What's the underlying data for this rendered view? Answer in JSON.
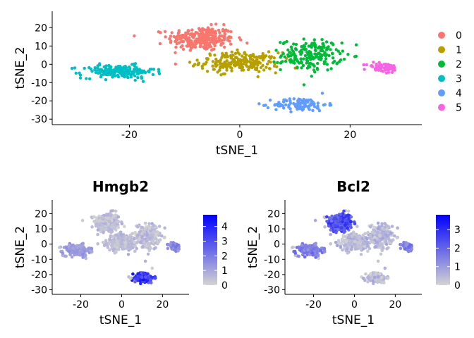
{
  "chart_data": [
    {
      "type": "scatter",
      "xlabel": "tSNE_1",
      "ylabel": "tSNE_2",
      "xlim": [
        -34,
        33
      ],
      "ylim": [
        -33,
        29
      ],
      "xticks": [
        -20,
        0,
        20
      ],
      "yticks": [
        -30,
        -20,
        -10,
        0,
        10,
        20
      ],
      "xtick_labels": [
        "-20",
        "0",
        "20"
      ],
      "ytick_labels": [
        "-30",
        "-20",
        "-10",
        "0",
        "10",
        "20"
      ],
      "grid": false,
      "legend_position": "right",
      "legend": [
        {
          "label": "0",
          "color": "#F8766D"
        },
        {
          "label": "1",
          "color": "#B79F00"
        },
        {
          "label": "2",
          "color": "#00BA38"
        },
        {
          "label": "3",
          "color": "#00BFC4"
        },
        {
          "label": "4",
          "color": "#619CFF"
        },
        {
          "label": "5",
          "color": "#F564E3"
        }
      ],
      "clusters": [
        {
          "name": "0",
          "color": "#F8766D",
          "center": [
            -7,
            14
          ],
          "spread": [
            5,
            5.5
          ],
          "n": 260
        },
        {
          "name": "1",
          "color": "#B79F00",
          "center": [
            0,
            1
          ],
          "spread": [
            6,
            4.5
          ],
          "n": 230
        },
        {
          "name": "2",
          "color": "#00BA38",
          "center": [
            13,
            5
          ],
          "spread": [
            4.5,
            7
          ],
          "n": 190
        },
        {
          "name": "3",
          "color": "#00BFC4",
          "center": [
            -22,
            -4
          ],
          "spread": [
            5.5,
            3
          ],
          "n": 200
        },
        {
          "name": "4",
          "color": "#619CFF",
          "center": [
            11,
            -22
          ],
          "spread": [
            4,
            3
          ],
          "n": 110
        },
        {
          "name": "5",
          "color": "#F564E3",
          "center": [
            26,
            -2
          ],
          "spread": [
            2.5,
            2.5
          ],
          "n": 60
        }
      ]
    },
    {
      "type": "scatter",
      "title": "Hmgb2",
      "xlabel": "tSNE_1",
      "ylabel": "tSNE_2",
      "xlim": [
        -34,
        33
      ],
      "ylim": [
        -33,
        29
      ],
      "xticks": [
        -20,
        0,
        20
      ],
      "yticks": [
        -30,
        -20,
        -10,
        0,
        10,
        20
      ],
      "xtick_labels": [
        "-20",
        "0",
        "20"
      ],
      "ytick_labels": [
        "-30",
        "-20",
        "-10",
        "0",
        "10",
        "20"
      ],
      "color_scale": {
        "low": "#D3D3D3",
        "high": "#0000FF",
        "min": 0,
        "max": 4.8
      },
      "colorbar_ticks": [
        0,
        1,
        2,
        3,
        4
      ],
      "colorbar_labels": [
        "0",
        "1",
        "2",
        "3",
        "4"
      ],
      "high_expression_regions": [
        {
          "center": [
            11,
            -22
          ],
          "spread": [
            4,
            3
          ],
          "value": 4
        },
        {
          "center": [
            26,
            -2
          ],
          "spread": [
            2.5,
            2.5
          ],
          "value": 2
        },
        {
          "center": [
            -22,
            -4
          ],
          "spread": [
            5.5,
            3
          ],
          "value": 1.5
        }
      ]
    },
    {
      "type": "scatter",
      "title": "Bcl2",
      "xlabel": "tSNE_1",
      "ylabel": "tSNE_2",
      "xlim": [
        -34,
        33
      ],
      "ylim": [
        -33,
        29
      ],
      "xticks": [
        -20,
        0,
        20
      ],
      "yticks": [
        -30,
        -20,
        -10,
        0,
        10,
        20
      ],
      "xtick_labels": [
        "-20",
        "0",
        "20"
      ],
      "ytick_labels": [
        "-30",
        "-20",
        "-10",
        "0",
        "10",
        "20"
      ],
      "color_scale": {
        "low": "#D3D3D3",
        "high": "#0000FF",
        "min": 0,
        "max": 3.8
      },
      "colorbar_ticks": [
        0,
        1,
        2,
        3
      ],
      "colorbar_labels": [
        "0",
        "1",
        "2",
        "3"
      ],
      "high_expression_regions": [
        {
          "center": [
            -7,
            14
          ],
          "spread": [
            5,
            5.5
          ],
          "value": 2.8
        },
        {
          "center": [
            -22,
            -4
          ],
          "spread": [
            5.5,
            3
          ],
          "value": 1.8
        },
        {
          "center": [
            26,
            -2
          ],
          "spread": [
            2.5,
            2.5
          ],
          "value": 1.8
        }
      ]
    }
  ]
}
